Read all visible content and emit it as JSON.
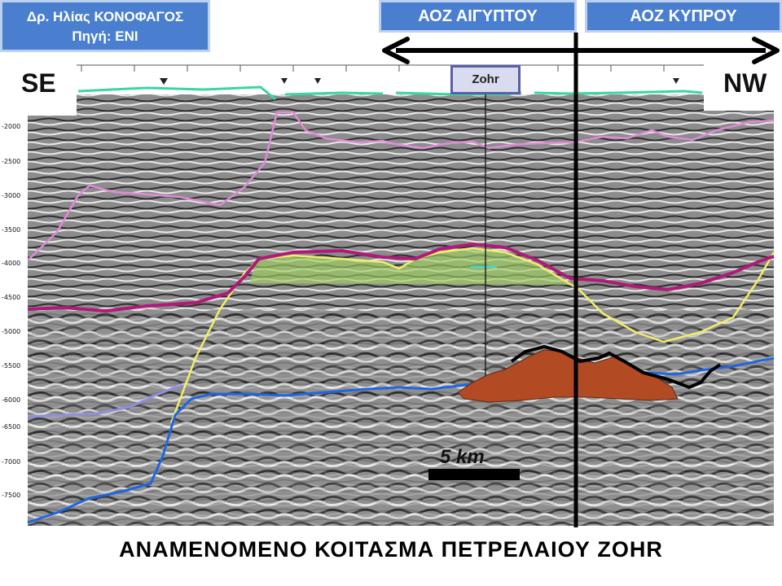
{
  "header": {
    "author_line": "Δρ. Ηλίας ΚΟΝΟΦΑΓΟΣ",
    "source_line": "Πηγή: ENI",
    "zone_left": "ΑΟΖ ΑΙΓΥΠΤΟΥ",
    "zone_right": "ΑΟΖ ΚΥΠΡΟΥ"
  },
  "section": {
    "left_direction": "SE",
    "right_direction": "NW",
    "well_label": "Zohr",
    "scale_label": "5 km",
    "depth_ticks": [
      "-2000",
      "-2500",
      "-3000",
      "-3500",
      "-4000",
      "-4500",
      "-5000",
      "-5500",
      "-6000",
      "-6500",
      "-7000",
      "-7500"
    ]
  },
  "caption": "ΑΝΑΜΕΝΟΜΕΝΟ ΚΟΙΤΑΣΜΑ ΠΕΤΡΕΛΑΙΟΥ ZOHR",
  "colors": {
    "label_blue": "#4a7fd0",
    "seafloor": "#3ad6a0",
    "top_horizon": "#e08ad8",
    "magenta_horizon": "#b01a78",
    "reef_outline": "#f2ee6a",
    "reef_fill": "#9ed060",
    "basement": "#1f66e0",
    "reservoir": "#b24a24",
    "lavender_horizon": "#8f8fe0"
  }
}
